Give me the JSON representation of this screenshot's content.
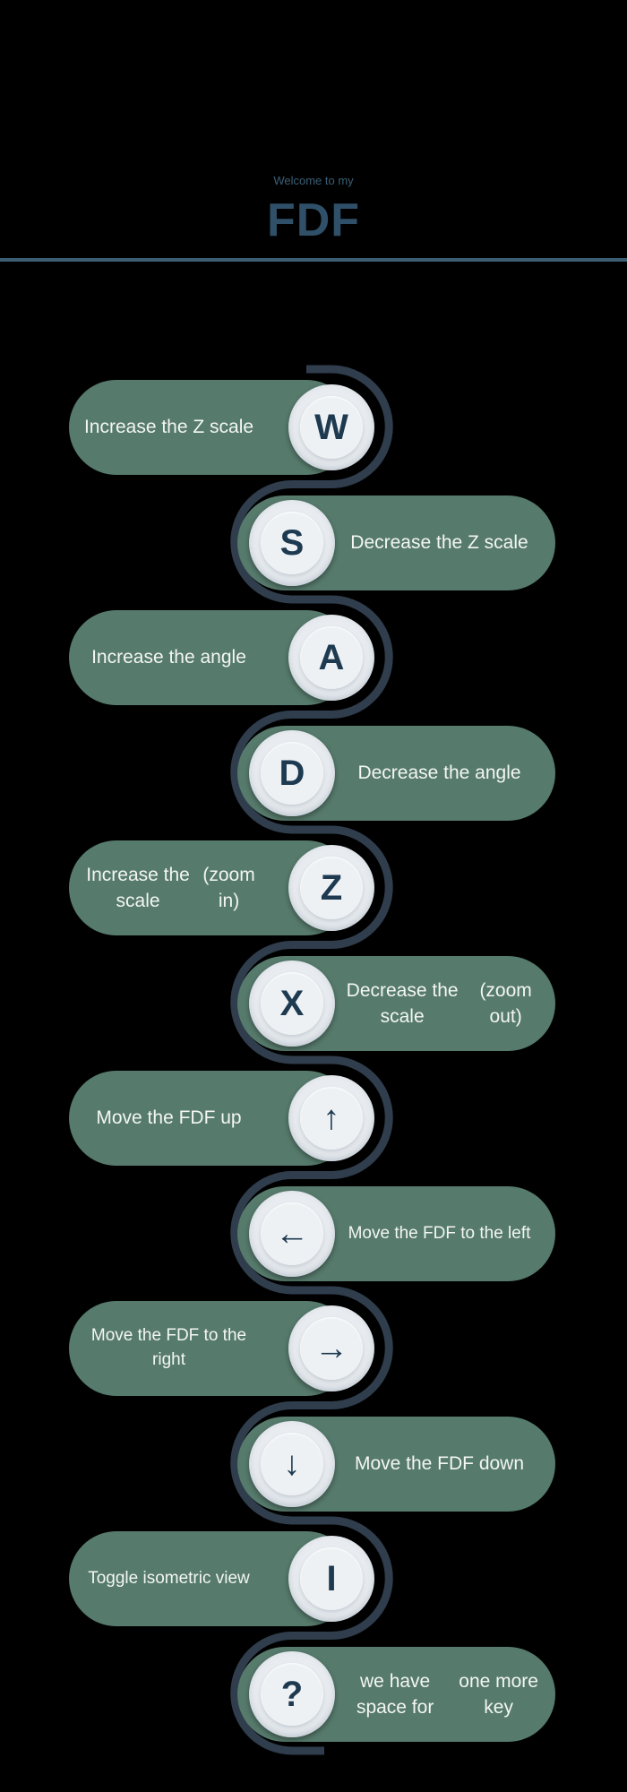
{
  "header": {
    "welcome": "Welcome to my",
    "title": "FDF"
  },
  "colors": {
    "background": "#000000",
    "pill": "#567a6c",
    "key": "#eef1f4",
    "key_text": "#1d3a50",
    "connector": "#2f3d4c",
    "title": "#2f5068"
  },
  "controls": [
    {
      "key": "W",
      "line1": "Increase the Z scale",
      "line2": ""
    },
    {
      "key": "S",
      "line1": "Decrease the Z scale",
      "line2": ""
    },
    {
      "key": "A",
      "line1": "Increase the angle",
      "line2": ""
    },
    {
      "key": "D",
      "line1": "Decrease the angle",
      "line2": ""
    },
    {
      "key": "Z",
      "line1": "Increase the scale",
      "line2": "(zoom in)"
    },
    {
      "key": "X",
      "line1": "Decrease the scale",
      "line2": "(zoom out)"
    },
    {
      "key": "↑",
      "line1": "Move the FDF up",
      "line2": ""
    },
    {
      "key": "←",
      "line1": "Move the FDF to the left",
      "line2": ""
    },
    {
      "key": "→",
      "line1": "Move the FDF to the right",
      "line2": ""
    },
    {
      "key": "↓",
      "line1": "Move the FDF down",
      "line2": ""
    },
    {
      "key": "I",
      "line1": "Toggle isometric view",
      "line2": ""
    },
    {
      "key": "?",
      "line1": "we have space for",
      "line2": "one more key"
    }
  ]
}
